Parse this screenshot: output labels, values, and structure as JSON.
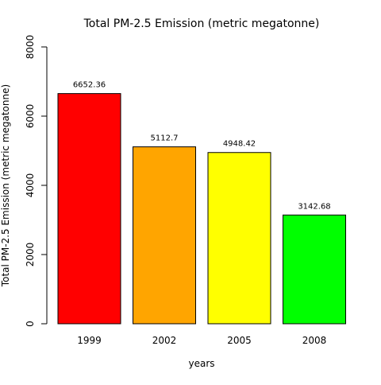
{
  "chart_data": {
    "type": "bar",
    "title": "Total PM-2.5 Emission (metric megatonne)",
    "xlabel": "years",
    "ylabel": "Total PM-2.5 Emission (metric megatonne)",
    "categories": [
      "1999",
      "2002",
      "2005",
      "2008"
    ],
    "values": [
      6652.36,
      5112.7,
      4948.42,
      3142.68
    ],
    "data_labels": [
      "6652.36",
      "5112.7",
      "4948.42",
      "3142.68"
    ],
    "colors": [
      "#ff0000",
      "#ffa500",
      "#ffff00",
      "#00ff00"
    ],
    "ylim": [
      0,
      8000
    ],
    "yticks": [
      0,
      2000,
      4000,
      6000,
      8000
    ],
    "ytick_labels": [
      "0",
      "2000",
      "4000",
      "6000",
      "8000"
    ],
    "grid": false,
    "legend": "none"
  }
}
